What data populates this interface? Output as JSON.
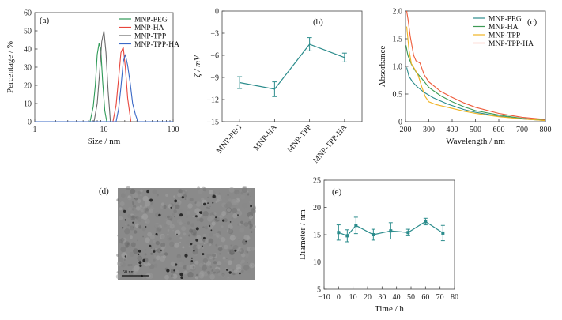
{
  "chart_data": [
    {
      "panel": "(a)",
      "type": "line",
      "xscale": "log",
      "xlim": [
        1,
        100
      ],
      "ylim": [
        0,
        60
      ],
      "xticks": [
        1,
        10,
        100
      ],
      "yticks": [
        0,
        10,
        20,
        30,
        40,
        50,
        60
      ],
      "xlabel": "Size / nm",
      "ylabel": "Percentage / %",
      "legend_position": "top-right",
      "series": [
        {
          "name": "MNP-PEG",
          "color": "#2e9a57",
          "points": [
            [
              6.3,
              0
            ],
            [
              7.0,
              8
            ],
            [
              7.5,
              20
            ],
            [
              8.0,
              37
            ],
            [
              8.5,
              43
            ],
            [
              9.0,
              40
            ],
            [
              9.6,
              22
            ],
            [
              10.3,
              6
            ],
            [
              11,
              0
            ]
          ]
        },
        {
          "name": "MNP-HA",
          "color": "#e8453c",
          "points": [
            [
              13.5,
              0
            ],
            [
              15.0,
              9
            ],
            [
              16.3,
              24
            ],
            [
              17.6,
              38
            ],
            [
              19.0,
              41
            ],
            [
              20.4,
              30
            ],
            [
              22.0,
              13
            ],
            [
              24.5,
              0
            ]
          ]
        },
        {
          "name": "MNP-TPP",
          "color": "#6b6b6b",
          "points": [
            [
              7.2,
              0
            ],
            [
              8.0,
              10
            ],
            [
              8.7,
              28
            ],
            [
              9.3,
              44
            ],
            [
              10.0,
              50
            ],
            [
              10.7,
              38
            ],
            [
              11.5,
              17
            ],
            [
              12.4,
              0
            ]
          ]
        },
        {
          "name": "MNP-TPP-HA",
          "color": "#3a68c6",
          "points": [
            [
              15.0,
              0
            ],
            [
              16.3,
              7
            ],
            [
              17.6,
              19
            ],
            [
              19.0,
              33
            ],
            [
              20.4,
              37
            ],
            [
              22.0,
              31
            ],
            [
              24.0,
              21
            ],
            [
              26.0,
              10
            ],
            [
              28.5,
              4
            ],
            [
              31,
              0
            ]
          ]
        }
      ]
    },
    {
      "panel": "(b)",
      "type": "line",
      "ylim": [
        -15,
        0
      ],
      "yticks": [
        0,
        -3,
        -6,
        -9,
        -12,
        -15
      ],
      "categories": [
        "MNP-PEG",
        "MNP-HA",
        "MNP-TPP",
        "MNP-TPP-HA"
      ],
      "ylabel": "ζ / mV",
      "series": [
        {
          "color": "#2b8c8c",
          "values": [
            -9.7,
            -10.6,
            -4.5,
            -6.3
          ],
          "errors": [
            0.8,
            1.0,
            0.9,
            0.6
          ]
        }
      ]
    },
    {
      "panel": "(c)",
      "type": "line",
      "xlim": [
        200,
        800
      ],
      "ylim": [
        0,
        2.0
      ],
      "xticks": [
        200,
        300,
        400,
        500,
        600,
        700,
        800
      ],
      "yticks": [
        0,
        0.5,
        1.0,
        1.5,
        2.0
      ],
      "xlabel": "Wavelength / nm",
      "ylabel": "Absorbance",
      "legend_position": "top-right",
      "series": [
        {
          "name": "MNP-PEG",
          "color": "#2b8c8c",
          "points": [
            [
              205,
              0.98
            ],
            [
              215,
              0.82
            ],
            [
              230,
              0.72
            ],
            [
              250,
              0.63
            ],
            [
              280,
              0.53
            ],
            [
              320,
              0.43
            ],
            [
              380,
              0.32
            ],
            [
              450,
              0.22
            ],
            [
              500,
              0.17
            ],
            [
              600,
              0.1
            ],
            [
              700,
              0.05
            ],
            [
              800,
              0.02
            ]
          ]
        },
        {
          "name": "MNP-HA",
          "color": "#3d9a55",
          "points": [
            [
              202,
              1.38
            ],
            [
              210,
              1.2
            ],
            [
              225,
              1.04
            ],
            [
              245,
              0.9
            ],
            [
              270,
              0.78
            ],
            [
              300,
              0.62
            ],
            [
              350,
              0.47
            ],
            [
              400,
              0.36
            ],
            [
              450,
              0.27
            ],
            [
              500,
              0.2
            ],
            [
              600,
              0.12
            ],
            [
              700,
              0.06
            ],
            [
              800,
              0.03
            ]
          ]
        },
        {
          "name": "MNP-TPP",
          "color": "#f0b323",
          "points": [
            [
              205,
              1.72
            ],
            [
              215,
              1.3
            ],
            [
              225,
              1.05
            ],
            [
              240,
              0.95
            ],
            [
              255,
              0.83
            ],
            [
              270,
              0.63
            ],
            [
              285,
              0.45
            ],
            [
              300,
              0.36
            ],
            [
              330,
              0.31
            ],
            [
              400,
              0.24
            ],
            [
              450,
              0.19
            ],
            [
              500,
              0.15
            ],
            [
              600,
              0.09
            ],
            [
              700,
              0.05
            ],
            [
              800,
              0.02
            ]
          ]
        },
        {
          "name": "MNP-TPP-HA",
          "color": "#ee5b3a",
          "points": [
            [
              205,
              2.0
            ],
            [
              212,
              1.82
            ],
            [
              220,
              1.55
            ],
            [
              235,
              1.2
            ],
            [
              245,
              1.1
            ],
            [
              262,
              1.06
            ],
            [
              280,
              0.85
            ],
            [
              300,
              0.72
            ],
            [
              350,
              0.55
            ],
            [
              400,
              0.44
            ],
            [
              450,
              0.34
            ],
            [
              500,
              0.26
            ],
            [
              600,
              0.15
            ],
            [
              700,
              0.08
            ],
            [
              800,
              0.04
            ]
          ]
        }
      ]
    },
    {
      "panel": "(d)",
      "type": "image",
      "scale_bar_label": "50 nm"
    },
    {
      "panel": "(e)",
      "type": "line",
      "xlim": [
        -10,
        80
      ],
      "ylim": [
        5,
        25
      ],
      "xticks": [
        -10,
        0,
        10,
        20,
        30,
        40,
        50,
        60,
        70,
        80
      ],
      "yticks": [
        5,
        10,
        15,
        20,
        25
      ],
      "xlabel": "Time / h",
      "ylabel": "Diameter / nm",
      "series": [
        {
          "color": "#2b8c8c",
          "x": [
            0,
            6,
            12,
            24,
            36,
            48,
            60,
            72
          ],
          "values": [
            15.4,
            14.8,
            16.7,
            15.0,
            15.7,
            15.4,
            17.4,
            15.3
          ],
          "errors": [
            1.4,
            1.1,
            1.5,
            1.0,
            1.5,
            0.6,
            0.6,
            1.4
          ]
        }
      ]
    }
  ]
}
